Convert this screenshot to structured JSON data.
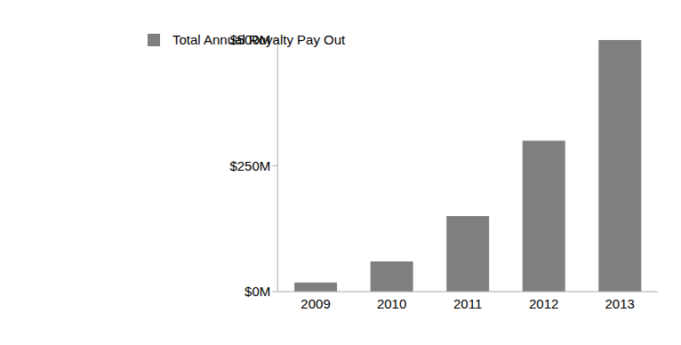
{
  "chart_data": {
    "type": "bar",
    "categories": [
      "2009",
      "2010",
      "2011",
      "2012",
      "2013"
    ],
    "series": [
      {
        "name": "Total Annual Royalty Pay Out",
        "color": "#7f7f7f",
        "values": [
          18,
          60,
          150,
          300,
          500
        ]
      }
    ],
    "ylim": [
      0,
      500
    ],
    "yticks": [
      {
        "value": 0,
        "label": "$0M"
      },
      {
        "value": 250,
        "label": "$250M"
      },
      {
        "value": 500,
        "label": "$500M"
      }
    ],
    "grid": false,
    "legend": "upper left"
  }
}
